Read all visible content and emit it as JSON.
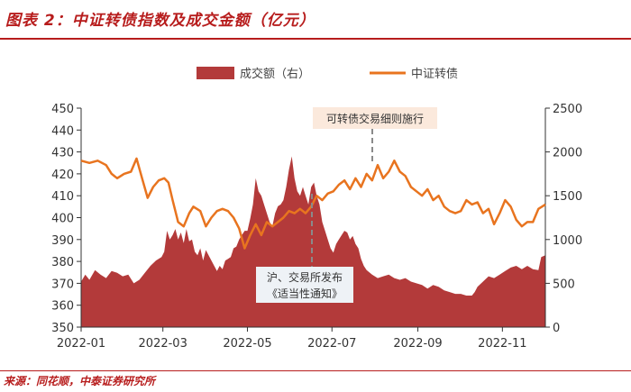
{
  "header": {
    "title": "图表 2：中证转债指数及成交金额（亿元）"
  },
  "source": {
    "text": "来源：同花顺，中泰证券研究所"
  },
  "colors": {
    "brand": "#b71c1c",
    "bars": "#b33a3a",
    "line": "#e8741f",
    "annotation_bg": "#fbe9dc",
    "dash": "#8a8a8a"
  },
  "chart_data": {
    "type": "area+line",
    "title": "中证转债指数及成交金额（亿元）",
    "legend": [
      {
        "label": "成交额（右）",
        "kind": "bar"
      },
      {
        "label": "中证转债",
        "kind": "line"
      }
    ],
    "x_labels": [
      "2022-01",
      "2022-03",
      "2022-05",
      "2022-07",
      "2022-09",
      "2022-11"
    ],
    "x_range_days": [
      0,
      335
    ],
    "x_label_days": [
      0,
      59,
      120,
      181,
      243,
      304
    ],
    "left_axis": {
      "min": 350,
      "max": 450,
      "ticks": [
        350,
        360,
        370,
        380,
        390,
        400,
        410,
        420,
        430,
        440,
        450
      ]
    },
    "right_axis": {
      "min": 0,
      "max": 2500,
      "ticks": [
        0,
        500,
        1000,
        1500,
        2000,
        2500
      ]
    },
    "series": [
      {
        "name": "中证转债",
        "axis": "left",
        "points": [
          [
            0,
            426
          ],
          [
            6,
            425
          ],
          [
            12,
            426
          ],
          [
            18,
            424
          ],
          [
            22,
            420
          ],
          [
            26,
            418
          ],
          [
            31,
            420
          ],
          [
            36,
            421
          ],
          [
            40,
            427
          ],
          [
            44,
            418
          ],
          [
            48,
            409
          ],
          [
            52,
            414
          ],
          [
            56,
            417
          ],
          [
            60,
            418
          ],
          [
            63,
            416
          ],
          [
            66,
            408
          ],
          [
            70,
            398
          ],
          [
            74,
            396
          ],
          [
            78,
            402
          ],
          [
            81,
            405
          ],
          [
            86,
            403
          ],
          [
            90,
            396
          ],
          [
            94,
            400
          ],
          [
            98,
            403
          ],
          [
            102,
            404
          ],
          [
            106,
            403
          ],
          [
            110,
            400
          ],
          [
            114,
            395
          ],
          [
            118,
            386
          ],
          [
            122,
            392
          ],
          [
            126,
            397
          ],
          [
            130,
            392
          ],
          [
            134,
            398
          ],
          [
            138,
            396
          ],
          [
            142,
            398
          ],
          [
            146,
            400
          ],
          [
            150,
            403
          ],
          [
            154,
            402
          ],
          [
            158,
            404
          ],
          [
            162,
            402
          ],
          [
            166,
            405
          ],
          [
            170,
            410
          ],
          [
            174,
            408
          ],
          [
            178,
            411
          ],
          [
            182,
            412
          ],
          [
            186,
            415
          ],
          [
            190,
            417
          ],
          [
            194,
            413
          ],
          [
            198,
            418
          ],
          [
            202,
            414
          ],
          [
            206,
            420
          ],
          [
            210,
            417
          ],
          [
            214,
            424
          ],
          [
            218,
            418
          ],
          [
            222,
            421
          ],
          [
            226,
            426
          ],
          [
            230,
            421
          ],
          [
            234,
            419
          ],
          [
            238,
            414
          ],
          [
            242,
            412
          ],
          [
            246,
            410
          ],
          [
            250,
            413
          ],
          [
            254,
            408
          ],
          [
            258,
            410
          ],
          [
            262,
            405
          ],
          [
            266,
            403
          ],
          [
            270,
            402
          ],
          [
            274,
            403
          ],
          [
            278,
            408
          ],
          [
            282,
            406
          ],
          [
            286,
            407
          ],
          [
            290,
            402
          ],
          [
            294,
            404
          ],
          [
            298,
            397
          ],
          [
            302,
            402
          ],
          [
            306,
            408
          ],
          [
            310,
            405
          ],
          [
            314,
            399
          ],
          [
            318,
            396
          ],
          [
            322,
            398
          ],
          [
            326,
            398
          ],
          [
            330,
            404
          ],
          [
            335,
            406
          ]
        ]
      },
      {
        "name": "成交额（右）",
        "axis": "right",
        "points": [
          [
            0,
            520
          ],
          [
            3,
            600
          ],
          [
            6,
            540
          ],
          [
            10,
            650
          ],
          [
            14,
            600
          ],
          [
            18,
            560
          ],
          [
            22,
            640
          ],
          [
            26,
            620
          ],
          [
            30,
            580
          ],
          [
            34,
            600
          ],
          [
            38,
            500
          ],
          [
            42,
            540
          ],
          [
            46,
            620
          ],
          [
            50,
            700
          ],
          [
            54,
            760
          ],
          [
            58,
            800
          ],
          [
            60,
            860
          ],
          [
            62,
            1100
          ],
          [
            64,
            1000
          ],
          [
            66,
            1050
          ],
          [
            68,
            1120
          ],
          [
            70,
            1000
          ],
          [
            72,
            1080
          ],
          [
            74,
            960
          ],
          [
            76,
            1120
          ],
          [
            78,
            980
          ],
          [
            80,
            1000
          ],
          [
            82,
            860
          ],
          [
            84,
            820
          ],
          [
            86,
            900
          ],
          [
            88,
            760
          ],
          [
            90,
            880
          ],
          [
            92,
            820
          ],
          [
            94,
            760
          ],
          [
            96,
            700
          ],
          [
            98,
            640
          ],
          [
            100,
            700
          ],
          [
            102,
            660
          ],
          [
            104,
            760
          ],
          [
            106,
            780
          ],
          [
            108,
            800
          ],
          [
            110,
            900
          ],
          [
            112,
            920
          ],
          [
            114,
            1000
          ],
          [
            116,
            1050
          ],
          [
            118,
            1100
          ],
          [
            120,
            1100
          ],
          [
            122,
            1240
          ],
          [
            124,
            1400
          ],
          [
            126,
            1700
          ],
          [
            128,
            1550
          ],
          [
            130,
            1500
          ],
          [
            132,
            1400
          ],
          [
            134,
            1300
          ],
          [
            136,
            1200
          ],
          [
            138,
            1150
          ],
          [
            140,
            1300
          ],
          [
            142,
            1380
          ],
          [
            144,
            1400
          ],
          [
            146,
            1450
          ],
          [
            148,
            1600
          ],
          [
            150,
            1800
          ],
          [
            152,
            1950
          ],
          [
            154,
            1700
          ],
          [
            156,
            1550
          ],
          [
            158,
            1500
          ],
          [
            160,
            1600
          ],
          [
            162,
            1500
          ],
          [
            164,
            1400
          ],
          [
            166,
            1600
          ],
          [
            168,
            1650
          ],
          [
            170,
            1500
          ],
          [
            172,
            1400
          ],
          [
            174,
            1200
          ],
          [
            176,
            1100
          ],
          [
            178,
            1000
          ],
          [
            180,
            900
          ],
          [
            182,
            850
          ],
          [
            184,
            950
          ],
          [
            186,
            1000
          ],
          [
            188,
            1050
          ],
          [
            190,
            1100
          ],
          [
            192,
            1080
          ],
          [
            194,
            1000
          ],
          [
            196,
            1040
          ],
          [
            198,
            950
          ],
          [
            200,
            900
          ],
          [
            202,
            780
          ],
          [
            204,
            700
          ],
          [
            206,
            650
          ],
          [
            210,
            600
          ],
          [
            214,
            560
          ],
          [
            218,
            580
          ],
          [
            222,
            600
          ],
          [
            226,
            560
          ],
          [
            230,
            540
          ],
          [
            234,
            560
          ],
          [
            238,
            520
          ],
          [
            242,
            500
          ],
          [
            246,
            480
          ],
          [
            250,
            440
          ],
          [
            254,
            480
          ],
          [
            258,
            460
          ],
          [
            262,
            420
          ],
          [
            266,
            400
          ],
          [
            270,
            380
          ],
          [
            274,
            380
          ],
          [
            278,
            360
          ],
          [
            282,
            360
          ],
          [
            284,
            400
          ],
          [
            286,
            460
          ],
          [
            290,
            520
          ],
          [
            294,
            580
          ],
          [
            298,
            560
          ],
          [
            302,
            600
          ],
          [
            306,
            640
          ],
          [
            310,
            680
          ],
          [
            314,
            700
          ],
          [
            318,
            660
          ],
          [
            322,
            700
          ],
          [
            326,
            660
          ],
          [
            330,
            650
          ],
          [
            332,
            800
          ],
          [
            335,
            820
          ]
        ]
      }
    ],
    "annotations": [
      {
        "text": "可转债交易细则施行",
        "day": 202,
        "value": 424
      },
      {
        "line1": "沪、交易所发布",
        "line2": "《适当性通知》",
        "day": 163,
        "value": 409
      }
    ]
  }
}
